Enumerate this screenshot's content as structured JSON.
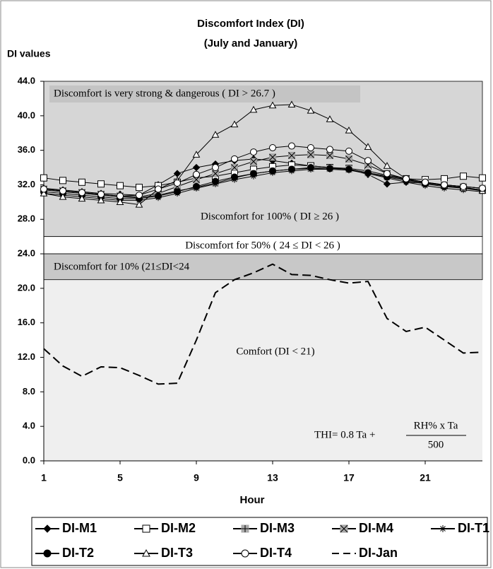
{
  "chart_data": {
    "type": "line",
    "title": "Discomfort Index (DI)",
    "subtitle": "(July and January)",
    "y_label": "DI values",
    "x_label": "Hour",
    "x": [
      1,
      2,
      3,
      4,
      5,
      6,
      7,
      8,
      9,
      10,
      11,
      12,
      13,
      14,
      15,
      16,
      17,
      18,
      19,
      20,
      21,
      22,
      23,
      24
    ],
    "xlim": [
      1,
      24
    ],
    "xticks": [
      1,
      5,
      9,
      13,
      17,
      21
    ],
    "ylim": [
      0,
      44
    ],
    "yticks": [
      {
        "value": 0,
        "label": "0.0"
      },
      {
        "value": 4,
        "label": "4.0"
      },
      {
        "value": 8,
        "label": "8.0"
      },
      {
        "value": 12,
        "label": "12.0"
      },
      {
        "value": 16,
        "label": "16.0"
      },
      {
        "value": 20,
        "label": "20.0"
      },
      {
        "value": 24,
        "label": "24.0"
      },
      {
        "value": 28,
        "label": "28.0"
      },
      {
        "value": 32,
        "label": "32.0"
      },
      {
        "value": 36,
        "label": "36.0"
      },
      {
        "value": 40,
        "label": "40.0"
      },
      {
        "value": 44,
        "label": "44.0"
      }
    ],
    "bands": [
      {
        "from": 26,
        "to": 44,
        "color": "#d6d6d6",
        "label": "Discomfort for 100% ( DI ≥ 26 )"
      },
      {
        "from": 24,
        "to": 26,
        "color": "#ffffff",
        "label": "Discomfort for 50% ( 24 ≤ DI < 26 )"
      },
      {
        "from": 21,
        "to": 24,
        "color": "#c8c8c8",
        "label": "Discomfort for 10% (21≤DI<24"
      }
    ],
    "annotations": [
      "Discomfort is very strong & dangerous ( DI > 26.7 )",
      "Comfort (DI < 21)"
    ],
    "formula": {
      "left": "THI= 0.8 Ta +",
      "numerator": "RH% x Ta",
      "denominator": "500"
    },
    "series": [
      {
        "name": "DI-M1",
        "color": "#000000",
        "marker": "diamond",
        "values": [
          31.6,
          31.4,
          31.2,
          31.0,
          30.9,
          30.8,
          32.0,
          33.3,
          34.0,
          34.4,
          34.8,
          35.0,
          34.8,
          34.5,
          34.2,
          34.0,
          33.8,
          33.2,
          32.1,
          32.3,
          32.2,
          32.0,
          31.8,
          31.6
        ]
      },
      {
        "name": "DI-M2",
        "color": "#000000",
        "marker": "square-open",
        "values": [
          32.8,
          32.5,
          32.3,
          32.1,
          31.9,
          31.7,
          31.9,
          32.3,
          32.8,
          33.0,
          33.4,
          33.8,
          34.1,
          34.3,
          34.2,
          34.0,
          33.9,
          33.6,
          33.1,
          32.7,
          32.6,
          32.7,
          33.0,
          32.8
        ]
      },
      {
        "name": "DI-M3",
        "color": "#000000",
        "marker": "square-plus",
        "values": [
          31.4,
          31.2,
          31.0,
          30.8,
          30.6,
          30.5,
          30.8,
          31.3,
          31.7,
          32.2,
          32.8,
          33.3,
          33.6,
          33.8,
          33.9,
          33.9,
          33.8,
          33.4,
          33.0,
          32.6,
          32.3,
          32.0,
          31.8,
          31.6
        ]
      },
      {
        "name": "DI-M4",
        "color": "#000000",
        "marker": "square-x",
        "values": [
          31.5,
          31.3,
          31.1,
          30.9,
          30.7,
          30.6,
          31.0,
          31.8,
          32.6,
          33.3,
          34.0,
          34.7,
          35.2,
          35.4,
          35.5,
          35.4,
          35.0,
          34.3,
          33.3,
          32.6,
          32.2,
          31.9,
          31.7,
          31.4
        ]
      },
      {
        "name": "DI-T1",
        "color": "#000000",
        "marker": "star",
        "values": [
          31.0,
          30.8,
          30.6,
          30.4,
          30.2,
          30.2,
          30.5,
          31.0,
          31.6,
          32.1,
          32.6,
          33.0,
          33.4,
          33.6,
          33.8,
          33.8,
          33.7,
          33.3,
          32.8,
          32.3,
          31.9,
          31.6,
          31.4,
          31.2
        ]
      },
      {
        "name": "DI-T2",
        "color": "#000000",
        "marker": "circle",
        "values": [
          31.2,
          31.0,
          30.8,
          30.6,
          30.4,
          30.4,
          30.7,
          31.2,
          31.8,
          32.4,
          32.9,
          33.3,
          33.6,
          33.8,
          34.0,
          33.9,
          33.8,
          33.4,
          32.9,
          32.5,
          32.1,
          31.8,
          31.6,
          31.4
        ]
      },
      {
        "name": "DI-T3",
        "color": "#000000",
        "marker": "triangle-open",
        "values": [
          31.0,
          30.6,
          30.4,
          30.2,
          30.0,
          29.7,
          31.5,
          32.5,
          35.5,
          37.8,
          39.0,
          40.7,
          41.2,
          41.3,
          40.6,
          39.6,
          38.3,
          36.4,
          34.2,
          32.7,
          32.3,
          31.9,
          31.6,
          31.3
        ]
      },
      {
        "name": "DI-T4",
        "color": "#000000",
        "marker": "circle-open",
        "values": [
          31.5,
          31.3,
          31.1,
          30.9,
          30.7,
          30.8,
          31.5,
          32.2,
          33.2,
          34.0,
          35.0,
          35.8,
          36.3,
          36.5,
          36.3,
          36.1,
          35.9,
          34.8,
          33.3,
          32.7,
          32.3,
          32.0,
          31.8,
          31.6
        ]
      },
      {
        "name": "DI-Jan",
        "color": "#000000",
        "dashed": true,
        "values": [
          13.0,
          11.0,
          9.8,
          10.9,
          10.8,
          9.9,
          8.9,
          9.0,
          14.0,
          19.5,
          21.0,
          21.8,
          22.8,
          21.6,
          21.5,
          21.0,
          20.6,
          20.8,
          16.5,
          15.0,
          15.5,
          14.0,
          12.5,
          12.6
        ]
      }
    ]
  }
}
